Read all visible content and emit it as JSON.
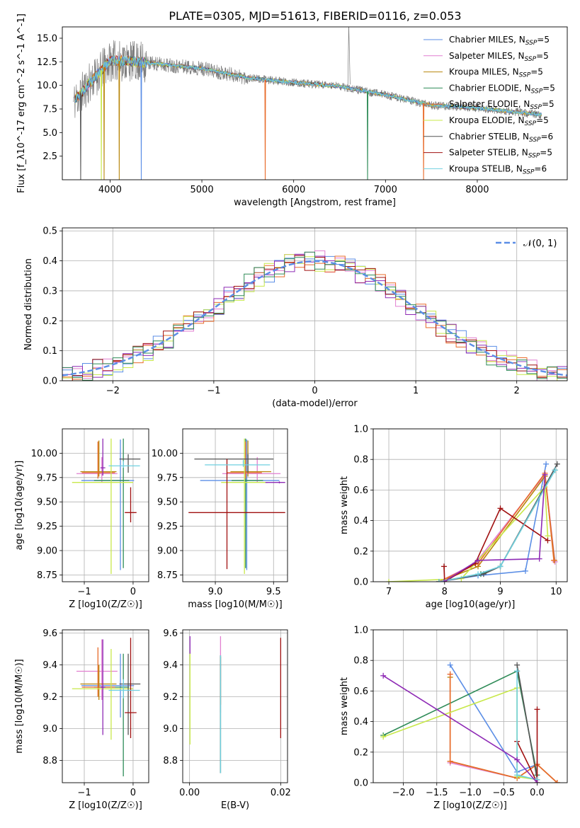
{
  "figure_title": "PLATE=0305, MJD=51613, FIBERID=0116, z=0.053",
  "model_colors": [
    "#5b8ee6",
    "#e17fd0",
    "#b8860b",
    "#2e8b57",
    "#e86b2a",
    "#c8e84a",
    "#555555",
    "#a01010",
    "#6fd0e0",
    "#8e2ab5"
  ],
  "chart_data": [
    {
      "type": "line",
      "panel": "spectrum",
      "title": "PLATE=0305, MJD=51613, FIBERID=0116, z=0.053",
      "xlabel": "wavelength [Angstrom, rest frame]",
      "ylabel": "Flux [f_λ10^-17 erg cm^-2 s^-1 A^-1]",
      "xlim": [
        3480,
        8980
      ],
      "ylim": [
        0.0,
        16.2
      ],
      "xticks": [
        "4000",
        "5000",
        "6000",
        "7000",
        "8000"
      ],
      "yticks": [
        "2.5",
        "5.0",
        "7.5",
        "10.0",
        "12.5",
        "15.0"
      ],
      "grid": false,
      "legend_position": "upper right",
      "series": [
        {
          "name": "Chabrier MILES, N_SSP=5"
        },
        {
          "name": "Salpeter MILES, N_SSP=5"
        },
        {
          "name": "Kroupa MILES, N_SSP=5"
        },
        {
          "name": "Chabrier ELODIE, N_SSP=5"
        },
        {
          "name": "Salpeter ELODIE, N_SSP=5"
        },
        {
          "name": "Kroupa ELODIE, N_SSP=5"
        },
        {
          "name": "Chabrier STELIB, N_SSP=6"
        },
        {
          "name": "Salpeter STELIB, N_SSP=5"
        },
        {
          "name": "Kroupa STELIB, N_SSP=6"
        }
      ],
      "continuum_x": [
        3600,
        3800,
        4000,
        4200,
        4500,
        5000,
        5500,
        6000,
        6500,
        7000,
        7500,
        8000,
        8500,
        8700
      ],
      "continuum_y": [
        8.2,
        10.5,
        12.6,
        12.6,
        12.3,
        11.8,
        10.8,
        10.3,
        9.9,
        9.0,
        7.9,
        7.6,
        7.1,
        6.9
      ]
    },
    {
      "type": "line",
      "panel": "residual-histogram",
      "xlabel": "(data-model)/error",
      "ylabel": "Normed distribution",
      "xlim": [
        -2.5,
        2.5
      ],
      "ylim": [
        0.0,
        0.51
      ],
      "xticks": [
        "−2",
        "−1",
        "0",
        "1",
        "2"
      ],
      "yticks": [
        "0.0",
        "0.1",
        "0.2",
        "0.3",
        "0.4",
        "0.5"
      ],
      "grid": true,
      "legend_position": "upper right",
      "legend": "𝒩(0, 1)",
      "normal_curve": {
        "mean": 0,
        "sigma": 1
      }
    },
    {
      "type": "scatter",
      "panel": "age-vs-Z",
      "xlabel": "Z [log10(Z/Z☉)]",
      "ylabel": "age [log10(age/yr)]",
      "xlim": [
        -1.45,
        0.32
      ],
      "ylim": [
        8.68,
        10.25
      ],
      "xticks": [
        "−1",
        "0"
      ],
      "yticks": [
        "8.75",
        "9.00",
        "9.25",
        "9.50",
        "9.75",
        "10.00"
      ],
      "grid": true,
      "points": [
        {
          "x": -0.26,
          "xerr_lo": 0.8,
          "xerr_hi": 0.28,
          "y": 9.72,
          "yerr_lo": 0.92,
          "yerr_hi": 0.42
        },
        {
          "x": -0.64,
          "xerr_lo": 0.52,
          "xerr_hi": 0.32,
          "y": 9.79,
          "yerr_lo": 0.09,
          "yerr_hi": 0.17
        },
        {
          "x": -0.7,
          "xerr_lo": 0.38,
          "xerr_hi": 0.36,
          "y": 9.81,
          "yerr_lo": 0.05,
          "yerr_hi": 0.32
        },
        {
          "x": -0.2,
          "xerr_lo": 0.6,
          "xerr_hi": 0.12,
          "y": 9.72,
          "yerr_lo": 0.9,
          "yerr_hi": 0.43
        },
        {
          "x": -0.72,
          "xerr_lo": 0.33,
          "xerr_hi": 0.35,
          "y": 9.8,
          "yerr_lo": 0.06,
          "yerr_hi": 0.32
        },
        {
          "x": -0.45,
          "xerr_lo": 0.8,
          "xerr_hi": 0.45,
          "y": 9.7,
          "yerr_lo": 0.94,
          "yerr_hi": 0.45
        },
        {
          "x": -0.1,
          "xerr_lo": 0.18,
          "xerr_hi": 0.25,
          "y": 9.94,
          "yerr_lo": 0.14,
          "yerr_hi": 0.05
        },
        {
          "x": -0.05,
          "xerr_lo": 0.12,
          "xerr_hi": 0.12,
          "y": 9.39,
          "yerr_lo": 0.1,
          "yerr_hi": 0.26
        },
        {
          "x": -0.2,
          "xerr_lo": 0.3,
          "xerr_hi": 0.34,
          "y": 9.87,
          "yerr_lo": 0.02,
          "yerr_hi": 0.05
        },
        {
          "x": -0.62,
          "xerr_lo": 0.05,
          "xerr_hi": 0.05,
          "y": 9.85,
          "yerr_lo": 0.08,
          "yerr_hi": 0.3
        }
      ]
    },
    {
      "type": "scatter",
      "panel": "age-vs-mass",
      "xlabel": "mass [log10(M/M☉)]",
      "ylabel": "",
      "xlim": [
        8.72,
        9.62
      ],
      "ylim": [
        8.68,
        10.25
      ],
      "xticks": [
        "9.0",
        "9.5"
      ],
      "yticks": [
        "8.75",
        "9.00",
        "9.25",
        "9.50",
        "9.75",
        "10.00"
      ],
      "grid": true,
      "points": [
        {
          "x": 9.27,
          "xerr_lo": 0.4,
          "xerr_hi": 0.28,
          "y": 9.72,
          "yerr_lo": 0.92,
          "yerr_hi": 0.42
        },
        {
          "x": 9.36,
          "xerr_lo": 0.3,
          "xerr_hi": 0.2,
          "y": 9.79,
          "yerr_lo": 0.09,
          "yerr_hi": 0.17
        },
        {
          "x": 9.28,
          "xerr_lo": 0.15,
          "xerr_hi": 0.2,
          "y": 9.81,
          "yerr_lo": 0.05,
          "yerr_hi": 0.32
        },
        {
          "x": 9.26,
          "xerr_lo": 0.12,
          "xerr_hi": 0.15,
          "y": 9.72,
          "yerr_lo": 0.9,
          "yerr_hi": 0.43
        },
        {
          "x": 9.26,
          "xerr_lo": 0.16,
          "xerr_hi": 0.14,
          "y": 9.8,
          "yerr_lo": 0.06,
          "yerr_hi": 0.32
        },
        {
          "x": 9.25,
          "xerr_lo": 0.2,
          "xerr_hi": 0.2,
          "y": 9.7,
          "yerr_lo": 0.94,
          "yerr_hi": 0.45
        },
        {
          "x": 9.28,
          "xerr_lo": 0.46,
          "xerr_hi": 0.22,
          "y": 9.94,
          "yerr_lo": 0.14,
          "yerr_hi": 0.05
        },
        {
          "x": 9.1,
          "xerr_lo": 0.33,
          "xerr_hi": 0.5,
          "y": 9.39,
          "yerr_lo": 0.58,
          "yerr_hi": 0.55
        },
        {
          "x": 9.24,
          "xerr_lo": 0.33,
          "xerr_hi": 0.23,
          "y": 9.88,
          "yerr_lo": 0.02,
          "yerr_hi": 0.05
        },
        {
          "x": 9.55,
          "xerr_lo": 0.12,
          "xerr_hi": 0.05,
          "y": 9.7,
          "yerr_lo": 0.01,
          "yerr_hi": 0.01
        }
      ]
    },
    {
      "type": "line",
      "panel": "mass-weight-vs-age",
      "xlabel": "age [log10(age/yr)]",
      "ylabel": "mass weight",
      "xlim": [
        6.72,
        10.2
      ],
      "ylim": [
        0.0,
        1.0
      ],
      "xticks": [
        "7",
        "8",
        "9",
        "10"
      ],
      "yticks": [
        "0.0",
        "0.2",
        "0.4",
        "0.6",
        "0.8",
        "1.0"
      ],
      "grid": true,
      "series": [
        {
          "x": [
            7.9,
            8.6,
            9.45,
            9.82
          ],
          "y": [
            0.0,
            0.04,
            0.07,
            0.77
          ]
        },
        {
          "x": [
            7.9,
            8.55,
            9.8,
            9.98
          ],
          "y": [
            0.0,
            0.12,
            0.7,
            0.13
          ]
        },
        {
          "x": [
            7.9,
            8.6,
            9.8,
            9.97
          ],
          "y": [
            0.0,
            0.1,
            0.69,
            0.14
          ]
        },
        {
          "x": [
            7.9,
            8.65,
            9.0,
            9.98
          ],
          "y": [
            0.0,
            0.05,
            0.1,
            0.73
          ]
        },
        {
          "x": [
            7.9,
            8.6,
            9.8,
            9.96
          ],
          "y": [
            0.0,
            0.12,
            0.71,
            0.14
          ]
        },
        {
          "x": [
            7.0,
            8.3,
            9.8,
            9.85
          ],
          "y": [
            0.0,
            0.02,
            0.62,
            0.3
          ]
        },
        {
          "x": [
            7.9,
            8.7,
            9.0,
            10.02
          ],
          "y": [
            0.0,
            0.05,
            0.1,
            0.77
          ]
        },
        {
          "x": [
            7.99,
            8.0,
            8.55,
            9.0,
            9.85
          ],
          "y": [
            0.1,
            0.0,
            0.12,
            0.48,
            0.27
          ]
        },
        {
          "x": [
            7.9,
            8.6,
            9.0,
            9.98
          ],
          "y": [
            0.0,
            0.05,
            0.1,
            0.73
          ]
        },
        {
          "x": [
            7.99,
            8.6,
            9.7,
            9.8
          ],
          "y": [
            0.0,
            0.14,
            0.15,
            0.7
          ]
        }
      ]
    },
    {
      "type": "scatter",
      "panel": "mass-vs-Z",
      "xlabel": "Z [log10(Z/Z☉)]",
      "ylabel": "mass [log10(M/M☉)]",
      "xlim": [
        -1.45,
        0.32
      ],
      "ylim": [
        8.66,
        9.62
      ],
      "xticks": [
        "−1",
        "0"
      ],
      "yticks": [
        "8.8",
        "9.0",
        "9.2",
        "9.4",
        "9.6"
      ],
      "grid": true,
      "points": [
        {
          "x": -0.26,
          "xerr_lo": 0.8,
          "xerr_hi": 0.28,
          "y": 9.27,
          "yerr_lo": 0.2,
          "yerr_hi": 0.2
        },
        {
          "x": -0.64,
          "xerr_lo": 0.52,
          "xerr_hi": 0.32,
          "y": 9.36,
          "yerr_lo": 0.18,
          "yerr_hi": 0.2
        },
        {
          "x": -0.7,
          "xerr_lo": 0.38,
          "xerr_hi": 0.36,
          "y": 9.28,
          "yerr_lo": 0.1,
          "yerr_hi": 0.12
        },
        {
          "x": -0.2,
          "xerr_lo": 0.6,
          "xerr_hi": 0.12,
          "y": 9.26,
          "yerr_lo": 0.56,
          "yerr_hi": 0.21
        },
        {
          "x": -0.72,
          "xerr_lo": 0.33,
          "xerr_hi": 0.35,
          "y": 9.26,
          "yerr_lo": 0.06,
          "yerr_hi": 0.25
        },
        {
          "x": -0.45,
          "xerr_lo": 0.8,
          "xerr_hi": 0.45,
          "y": 9.25,
          "yerr_lo": 0.32,
          "yerr_hi": 0.25
        },
        {
          "x": -0.1,
          "xerr_lo": 0.18,
          "xerr_hi": 0.25,
          "y": 9.28,
          "yerr_lo": 0.32,
          "yerr_hi": 0.19
        },
        {
          "x": -0.05,
          "xerr_lo": 0.12,
          "xerr_hi": 0.12,
          "y": 9.1,
          "yerr_lo": 0.16,
          "yerr_hi": 0.47
        },
        {
          "x": -0.2,
          "xerr_lo": 0.3,
          "xerr_hi": 0.34,
          "y": 9.24,
          "yerr_lo": 0.05,
          "yerr_hi": 0.07
        },
        {
          "x": -0.62,
          "xerr_lo": 0.05,
          "xerr_hi": 0.05,
          "y": 9.26,
          "yerr_lo": 0.3,
          "yerr_hi": 0.3
        }
      ]
    },
    {
      "type": "scatter",
      "panel": "mass-vs-EBV",
      "xlabel": "E(B-V)",
      "ylabel": "",
      "xlim": [
        -0.0015,
        0.0215
      ],
      "ylim": [
        8.66,
        9.62
      ],
      "xticks": [
        "0.00",
        "0.02"
      ],
      "yticks": [
        "8.8",
        "9.0",
        "9.2",
        "9.4",
        "9.6"
      ],
      "grid": true,
      "points": [
        {
          "x": 0.0068,
          "y": 9.3,
          "yerr_lo": 0.2,
          "yerr_hi": 0.15
        },
        {
          "x": 0.0068,
          "y": 9.4,
          "yerr_lo": 0.1,
          "yerr_hi": 0.18
        },
        {
          "x": 0.0068,
          "y": 9.3,
          "yerr_lo": 0.15,
          "yerr_hi": 0.15
        },
        {
          "x": 0.0068,
          "y": 9.2,
          "yerr_lo": 0.48,
          "yerr_hi": 0.26
        },
        {
          "x": 0.0068,
          "y": 9.3,
          "yerr_lo": 0.15,
          "yerr_hi": 0.15
        },
        {
          "x": 0.0001,
          "y": 9.3,
          "yerr_lo": 0.4,
          "yerr_hi": 0.18
        },
        {
          "x": 0.0068,
          "y": 9.2,
          "yerr_lo": 0.48,
          "yerr_hi": 0.26
        },
        {
          "x": 0.02,
          "y": 9.25,
          "yerr_lo": 0.31,
          "yerr_hi": 0.32
        },
        {
          "x": 0.0068,
          "y": 9.2,
          "yerr_lo": 0.48,
          "yerr_hi": 0.26
        },
        {
          "x": 0.0001,
          "y": 9.5,
          "yerr_lo": 0.03,
          "yerr_hi": 0.08
        }
      ]
    },
    {
      "type": "line",
      "panel": "mass-weight-vs-Z",
      "xlabel": "Z [log10(Z/Z☉)]",
      "ylabel": "mass weight",
      "xlim": [
        -2.45,
        0.45
      ],
      "ylim": [
        0.0,
        1.0
      ],
      "xticks": [
        "−2.0",
        "−1.5",
        "−1.0",
        "−0.5",
        "0.0"
      ],
      "yticks": [
        "0.0",
        "0.2",
        "0.4",
        "0.6",
        "0.8",
        "1.0"
      ],
      "grid": true,
      "series": [
        {
          "x": [
            -1.3,
            -0.3,
            0.0
          ],
          "y": [
            0.77,
            0.07,
            0.12
          ]
        },
        {
          "x": [
            -1.3,
            -1.3,
            -0.3,
            0.0,
            0.3
          ],
          "y": [
            0.71,
            0.13,
            0.03,
            0.12,
            0.0
          ]
        },
        {
          "x": [
            -1.3,
            -1.3,
            -0.3,
            0.0,
            0.3
          ],
          "y": [
            0.69,
            0.14,
            0.03,
            0.12,
            0.0
          ]
        },
        {
          "x": [
            -2.3,
            -0.3,
            0.0
          ],
          "y": [
            0.31,
            0.73,
            0.05
          ]
        },
        {
          "x": [
            -1.3,
            -1.3,
            -0.3,
            0.0,
            0.3
          ],
          "y": [
            0.71,
            0.14,
            0.03,
            0.12,
            0.0
          ]
        },
        {
          "x": [
            -2.3,
            -0.3,
            -0.3,
            0.0
          ],
          "y": [
            0.3,
            0.62,
            0.04,
            0.02
          ]
        },
        {
          "x": [
            -0.3,
            0.0
          ],
          "y": [
            0.77,
            0.02
          ]
        },
        {
          "x": [
            -0.3,
            0.0,
            0.0
          ],
          "y": [
            0.27,
            0.0,
            0.48
          ]
        },
        {
          "x": [
            -0.3,
            -0.3,
            0.0
          ],
          "y": [
            0.73,
            0.05,
            0.02
          ]
        },
        {
          "x": [
            -2.3,
            -0.3,
            0.0
          ],
          "y": [
            0.7,
            0.15,
            0.0
          ]
        }
      ]
    }
  ]
}
